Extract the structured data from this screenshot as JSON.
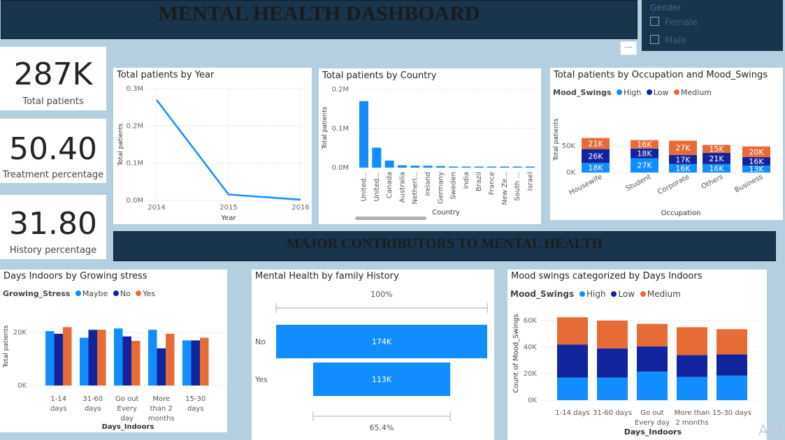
{
  "header": {
    "title": "MENTAL HEALTH DASHBOARD"
  },
  "slicer": {
    "title": "Gender",
    "options": [
      "Female",
      "Male"
    ]
  },
  "more_icon": "more-options-icon",
  "kpis": [
    {
      "value": "287K",
      "label": "Total patients"
    },
    {
      "value": "50.40",
      "label": "Treatment percentage"
    },
    {
      "value": "31.80",
      "label": "History percentage"
    }
  ],
  "section_banner": {
    "title": "MAJOR CONTRIBUTORS TO MENTAL HEALTH"
  },
  "watermark": "Acti",
  "colors": {
    "blue_light": "#118dff",
    "blue_dark": "#12239e",
    "orange": "#e66c37",
    "header_bg": "#19354d"
  },
  "charts": {
    "year": {
      "title": "Total patients by Year",
      "chart_data": {
        "type": "line",
        "x": [
          "2014",
          "2015",
          "2016"
        ],
        "values": [
          270000,
          16000,
          2000
        ],
        "yticks": [
          "0.0M",
          "0.1M",
          "0.2M",
          "0.3M"
        ],
        "ylim": [
          0,
          300000
        ],
        "xlabel": "Year",
        "ylabel": "Total patients"
      }
    },
    "country": {
      "title": "Total patients by Country",
      "chart_data": {
        "type": "bar",
        "categories": [
          "United...",
          "United...",
          "Canada",
          "Australia",
          "Netherl...",
          "Ireland",
          "Germany",
          "Sweden",
          "India",
          "Brazil",
          "France",
          "New Ze...",
          "South ...",
          "Israel"
        ],
        "values": [
          170000,
          51000,
          18000,
          6000,
          5000,
          5000,
          4000,
          2000,
          2000,
          2000,
          2000,
          2000,
          1500,
          1000
        ],
        "yticks": [
          "0.0M",
          "0.1M",
          "0.2M"
        ],
        "ylim": [
          0,
          200000
        ],
        "xlabel": "Country",
        "ylabel": "Total patients"
      }
    },
    "occupation": {
      "title": "Total patients by Occupation and Mood_Swings",
      "legend_title": "Mood_Swings",
      "chart_data": {
        "type": "bar",
        "stacked": true,
        "categories": [
          "Housewife",
          "Student",
          "Corporate",
          "Others",
          "Business"
        ],
        "series": [
          {
            "name": "High",
            "values": [
              18000,
              27000,
              16000,
              16000,
              13000
            ],
            "labels": [
              "18K",
              "27K",
              "16K",
              "16K",
              "13K"
            ]
          },
          {
            "name": "Low",
            "values": [
              26000,
              18000,
              17000,
              21000,
              16000
            ],
            "labels": [
              "26K",
              "18K",
              "17K",
              "21K",
              "16K"
            ]
          },
          {
            "name": "Medium",
            "values": [
              21000,
              16000,
              27000,
              15000,
              20000
            ],
            "labels": [
              "21K",
              "16K",
              "27K",
              "15K",
              "20K"
            ]
          }
        ],
        "yticks": [
          "0K",
          "50K"
        ],
        "ylim": [
          0,
          75000
        ],
        "xlabel": "Occupation",
        "ylabel": "Total patients"
      }
    },
    "indoors_stress": {
      "title": "Days Indoors by Growing stress",
      "legend_title": "Growing_Stress",
      "chart_data": {
        "type": "bar",
        "categories": [
          "1-14 days",
          "31-60 days",
          "Go out Every day",
          "More than 2 months",
          "15-30 days"
        ],
        "category_lines": [
          [
            "1-14",
            "days"
          ],
          [
            "31-60",
            "days"
          ],
          [
            "Go out",
            "Every",
            "day"
          ],
          [
            "More",
            "than 2",
            "months"
          ],
          [
            "15-30",
            "days"
          ]
        ],
        "series": [
          {
            "name": "Maybe",
            "values": [
              20500,
              18000,
              21500,
              21000,
              17000
            ]
          },
          {
            "name": "No",
            "values": [
              19500,
              21000,
              18500,
              14000,
              17000
            ]
          },
          {
            "name": "Yes",
            "values": [
              22000,
              21000,
              16800,
              19500,
              18000
            ]
          }
        ],
        "yticks": [
          "0K",
          "20K"
        ],
        "ylim": [
          0,
          28000
        ],
        "xlabel": "Days_Indoors",
        "ylabel": "Total patients"
      }
    },
    "family": {
      "title": "Mental Health by family History",
      "chart_data": {
        "type": "funnel",
        "categories": [
          "No",
          "Yes"
        ],
        "values": [
          174000,
          113000
        ],
        "labels": [
          "174K",
          "113K"
        ],
        "top_pct": "100%",
        "bottom_pct": "65.4%"
      }
    },
    "mood_indoors": {
      "title": "Mood swings categorized by Days Indoors",
      "legend_title": "Mood_Swings",
      "chart_data": {
        "type": "bar",
        "stacked": true,
        "categories": [
          "1-14 days",
          "31-60 days",
          "Go out Every day",
          "More than 2 months",
          "15-30 days"
        ],
        "category_lines": [
          [
            "1-14 days"
          ],
          [
            "31-60 days"
          ],
          [
            "Go out",
            "Every day"
          ],
          [
            "More than",
            "2 months"
          ],
          [
            "15-30 days"
          ]
        ],
        "series": [
          {
            "name": "High",
            "values": [
              17000,
              17000,
              21500,
              17500,
              18500
            ]
          },
          {
            "name": "Low",
            "values": [
              25000,
              22000,
              19000,
              16500,
              16000
            ]
          },
          {
            "name": "Medium",
            "values": [
              20500,
              21000,
              17000,
              21000,
              19000
            ]
          }
        ],
        "yticks": [
          "0K",
          "20K",
          "40K",
          "60K"
        ],
        "ylim": [
          0,
          65000
        ],
        "xlabel": "Days_Indoors",
        "ylabel": "Count of Mood_Swings"
      }
    }
  }
}
